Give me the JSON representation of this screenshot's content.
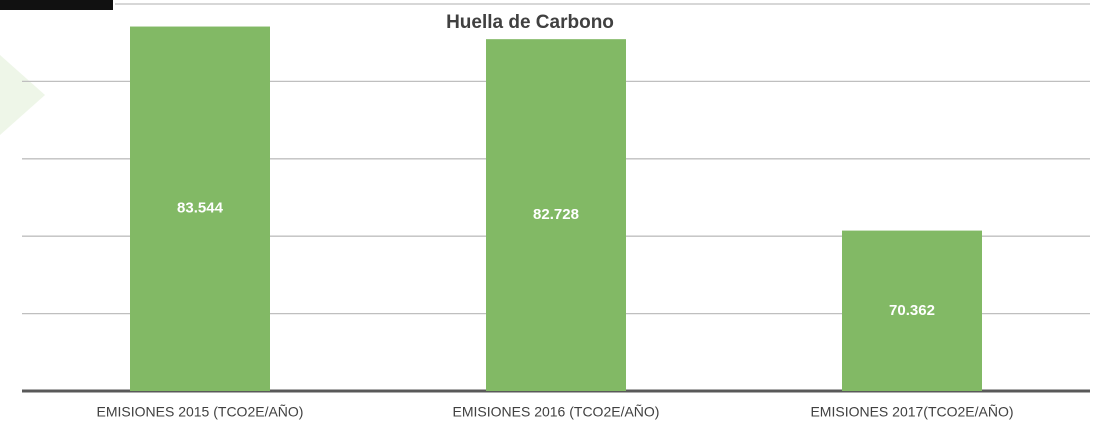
{
  "chart_data": {
    "type": "bar",
    "title": "Huella de Carbono",
    "categories": [
      "EMISIONES 2015 (TCO2E/AÑO)",
      "EMISIONES 2016 (TCO2E/AÑO)",
      "EMISIONES 2017(TCO2E/AÑO)"
    ],
    "values": [
      83544,
      82728,
      70362
    ],
    "value_labels": [
      "83.544",
      "82.728",
      "70.362"
    ],
    "color": "#82b965",
    "ylim": [
      60000,
      85000
    ],
    "yticks": [
      60000,
      65000,
      70000,
      75000,
      80000,
      85000
    ],
    "grid": true
  }
}
